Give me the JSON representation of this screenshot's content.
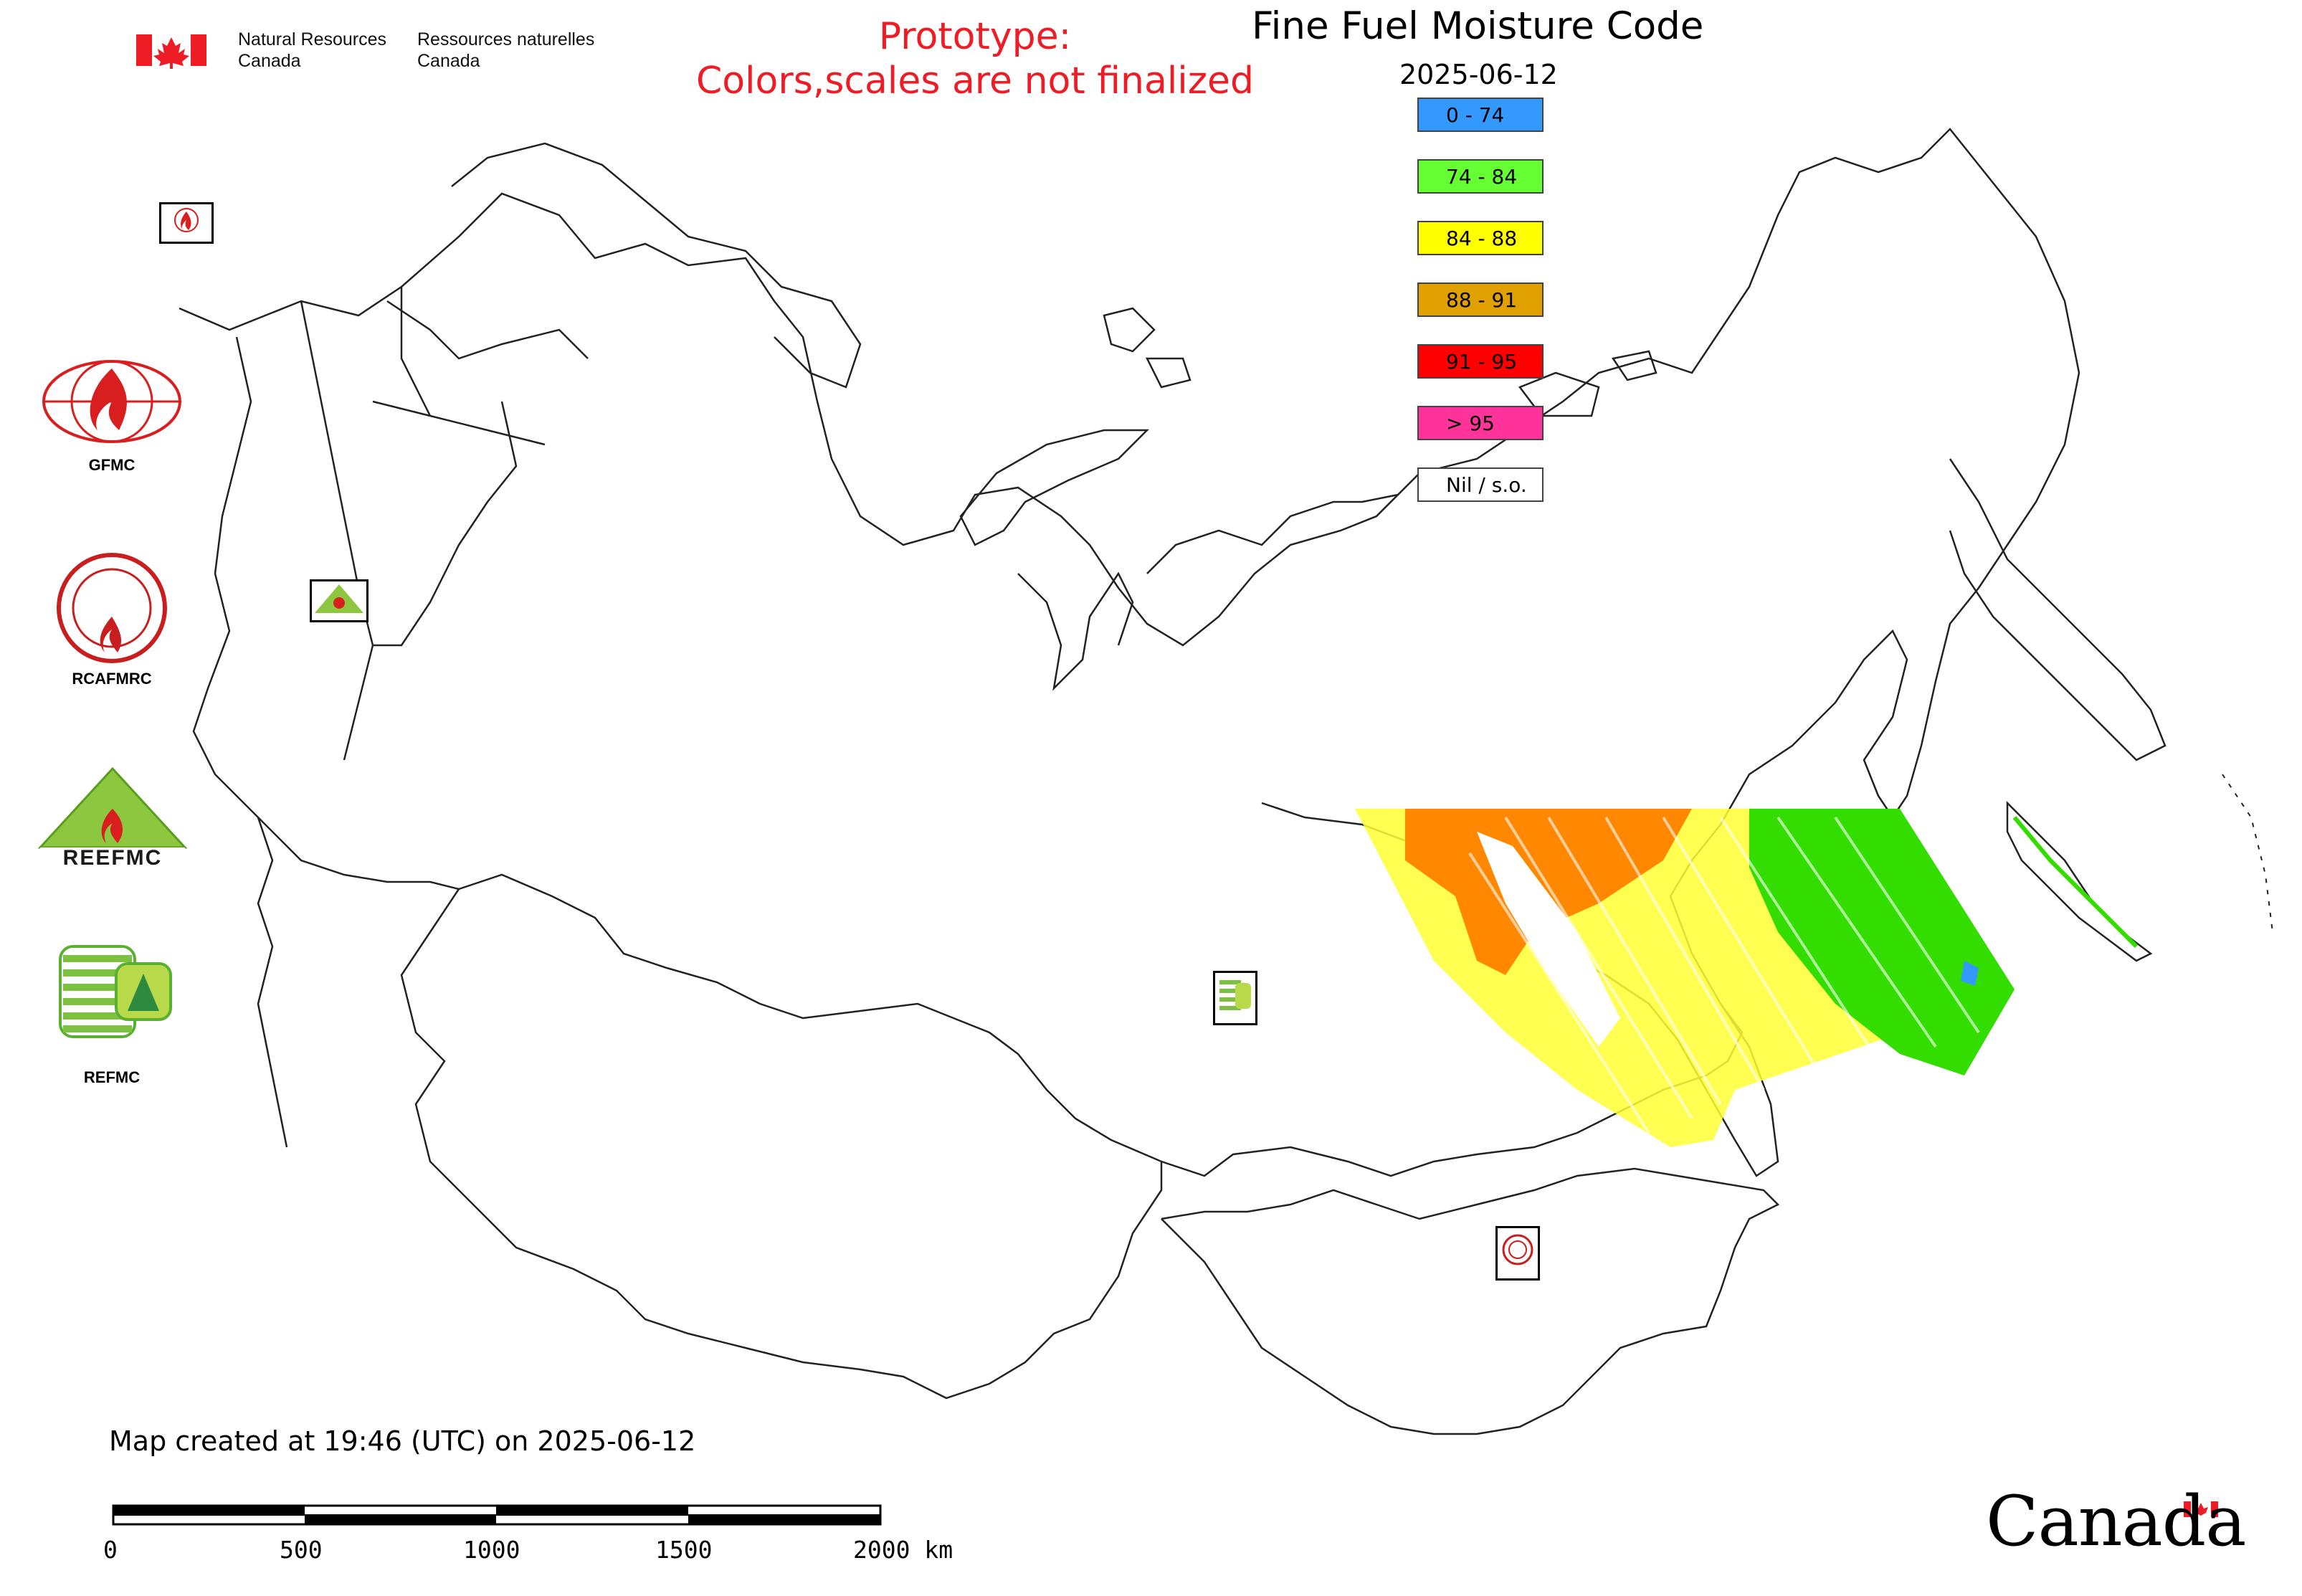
{
  "header": {
    "agency_en": "Natural Resources\nCanada",
    "agency_fr": "Ressources naturelles\nCanada",
    "prototype_line1": "Prototype:",
    "prototype_line2": "Colors,scales are not finalized",
    "title": "Fine Fuel Moisture Code",
    "date": "2025-06-12"
  },
  "legend": [
    {
      "label": "0 - 74",
      "color": "#3399ff"
    },
    {
      "label": "74 - 84",
      "color": "#66ff33"
    },
    {
      "label": "84 - 88",
      "color": "#ffff00"
    },
    {
      "label": "88 - 91",
      "color": "#e0a000"
    },
    {
      "label": "91 - 95",
      "color": "#ff0000"
    },
    {
      "label": "> 95",
      "color": "#ff3399"
    },
    {
      "label": "Nil / s.o.",
      "color": "#ffffff"
    }
  ],
  "logos": [
    {
      "label": "GFMC",
      "icon": "gfmc-flame-globe-icon"
    },
    {
      "label": "RCAFMRC",
      "icon": "rcafmrc-seal-icon"
    },
    {
      "label": "REEFMC",
      "icon": "reefmc-triangle-icon"
    },
    {
      "label": "REFMC",
      "icon": "refmc-sigma-icon"
    }
  ],
  "footer": {
    "created": "Map created at 19:46 (UTC) on 2025-06-12",
    "scale_ticks": [
      "0",
      "500",
      "1000",
      "1500",
      "2000 km"
    ],
    "wordmark": "Canada"
  },
  "colors": {
    "orange": "#ff8800",
    "yellow": "#ffff00",
    "green": "#33dd00",
    "blue": "#3399ff",
    "prototype_red": "#ee1c25"
  }
}
